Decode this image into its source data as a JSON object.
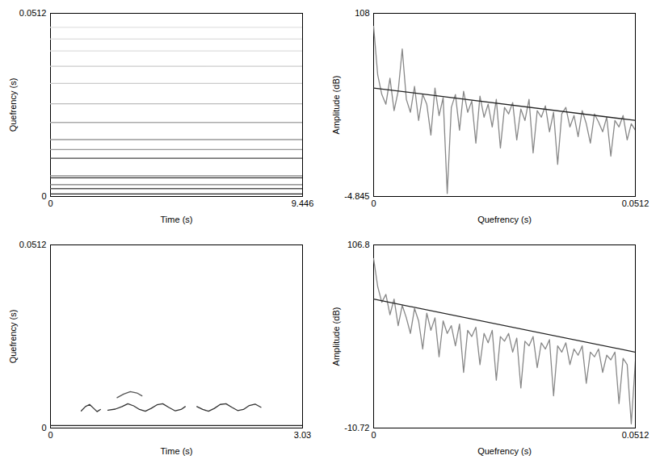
{
  "chart_data": [
    {
      "type": "line",
      "xlabel": "Time (s)",
      "ylabel": "Quefrency (s)",
      "xlim": [
        0,
        9.446
      ],
      "xticks": [
        0,
        9.446
      ],
      "ylim": [
        0,
        0.0512
      ],
      "yticks": [
        0,
        0.0512
      ],
      "series": [
        {
          "x": [
            0,
            9.446
          ],
          "values": [
            0.0007,
            0.0007
          ],
          "color": "#222222"
        },
        {
          "x": [
            0,
            9.446
          ],
          "values": [
            0.0022,
            0.0022
          ],
          "color": "#555555"
        },
        {
          "x": [
            0,
            9.446
          ],
          "values": [
            0.0033,
            0.0033
          ],
          "color": "#777777"
        },
        {
          "x": [
            0,
            9.446
          ],
          "values": [
            0.0052,
            0.0052
          ],
          "color": "#333333"
        },
        {
          "x": [
            0,
            9.446
          ],
          "values": [
            0.0058,
            0.0058
          ],
          "color": "#888888"
        },
        {
          "x": [
            0,
            9.446
          ],
          "values": [
            0.0107,
            0.0107
          ],
          "color": "#444444"
        },
        {
          "x": [
            0,
            9.446
          ],
          "values": [
            0.0131,
            0.0131
          ],
          "color": "#999999"
        },
        {
          "x": [
            0,
            9.446
          ],
          "values": [
            0.0159,
            0.0159
          ],
          "color": "#999999"
        },
        {
          "x": [
            0,
            9.446
          ],
          "values": [
            0.0207,
            0.0207
          ],
          "color": "#aaaaaa"
        },
        {
          "x": [
            0,
            9.446
          ],
          "values": [
            0.0259,
            0.0259
          ],
          "color": "#bbbbbb"
        },
        {
          "x": [
            0,
            9.446
          ],
          "values": [
            0.0316,
            0.0316
          ],
          "color": "#cccccc"
        },
        {
          "x": [
            0,
            9.446
          ],
          "values": [
            0.0364,
            0.0364
          ],
          "color": "#cccccc"
        },
        {
          "x": [
            0,
            9.446
          ],
          "values": [
            0.0407,
            0.0407
          ],
          "color": "#dddddd"
        },
        {
          "x": [
            0,
            9.446
          ],
          "values": [
            0.044,
            0.044
          ],
          "color": "#dddddd"
        },
        {
          "x": [
            0,
            9.446
          ],
          "values": [
            0.0473,
            0.0473
          ],
          "color": "#e2e2e2"
        }
      ]
    },
    {
      "type": "line",
      "xlabel": "Quefrency (s)",
      "ylabel": "Amplitude (dB)",
      "xlim": [
        0,
        0.0512
      ],
      "xticks": [
        0,
        0.0512
      ],
      "ylim": [
        -4.845,
        108
      ],
      "yticks": [
        -4.845,
        108
      ],
      "series": [
        {
          "x": [
            0,
            0.0008,
            0.0016,
            0.0024,
            0.0032,
            0.004,
            0.0048,
            0.0056,
            0.0064,
            0.0072,
            0.008,
            0.0088,
            0.0096,
            0.0104,
            0.0112,
            0.012,
            0.0128,
            0.0136,
            0.0144,
            0.0152,
            0.016,
            0.0168,
            0.0176,
            0.0184,
            0.0192,
            0.02,
            0.0208,
            0.0216,
            0.0224,
            0.0232,
            0.024,
            0.0248,
            0.0256,
            0.0264,
            0.0272,
            0.028,
            0.0288,
            0.0296,
            0.0304,
            0.0312,
            0.032,
            0.0328,
            0.0336,
            0.0344,
            0.0352,
            0.036,
            0.0368,
            0.0376,
            0.0384,
            0.0392,
            0.04,
            0.0408,
            0.0416,
            0.0424,
            0.0432,
            0.044,
            0.0448,
            0.0456,
            0.0464,
            0.0472,
            0.048,
            0.0488,
            0.0496,
            0.0504,
            0.0512
          ],
          "values": [
            100,
            70,
            58,
            52,
            68,
            48,
            60,
            86,
            55,
            47,
            63,
            42,
            58,
            52,
            33,
            62,
            45,
            56,
            -3,
            50,
            58,
            36,
            60,
            47,
            54,
            28,
            57,
            44,
            52,
            38,
            55,
            25,
            50,
            46,
            53,
            30,
            49,
            42,
            55,
            22,
            48,
            44,
            51,
            35,
            47,
            15,
            46,
            50,
            38,
            45,
            32,
            48,
            40,
            28,
            46,
            41,
            35,
            44,
            20,
            42,
            38,
            45,
            30,
            40,
            36
          ],
          "color": "#888888",
          "line_style": "solid"
        },
        {
          "x": [
            0,
            0.0512
          ],
          "values": [
            62,
            42
          ],
          "color": "#222222",
          "line_style": "solid"
        }
      ]
    },
    {
      "type": "line",
      "xlabel": "Time (s)",
      "ylabel": "Quefrency (s)",
      "xlim": [
        0,
        3.03
      ],
      "xticks": [
        0,
        3.03
      ],
      "ylim": [
        0,
        0.0512
      ],
      "yticks": [
        0,
        0.0512
      ],
      "series": [
        {
          "x": [
            0,
            3.03
          ],
          "values": [
            0.0007,
            0.0007
          ],
          "color": "#222222"
        },
        {
          "x": [
            0.37,
            0.42,
            0.47,
            0.52,
            0.56,
            0.6
          ],
          "values": [
            0.0048,
            0.006,
            0.0066,
            0.0055,
            0.0046,
            0.0052
          ],
          "color": "#333333"
        },
        {
          "x": [
            0.69,
            0.78,
            0.86,
            0.93,
            1.0,
            1.07,
            1.14,
            1.21,
            1.28,
            1.35,
            1.42,
            1.5,
            1.57,
            1.62
          ],
          "values": [
            0.005,
            0.0053,
            0.006,
            0.0068,
            0.0062,
            0.0052,
            0.0047,
            0.0055,
            0.0065,
            0.0068,
            0.0058,
            0.0048,
            0.0052,
            0.006
          ],
          "color": "#333333"
        },
        {
          "x": [
            0.8,
            0.88,
            0.96,
            1.04,
            1.1
          ],
          "values": [
            0.0085,
            0.0095,
            0.0102,
            0.0098,
            0.009
          ],
          "color": "#555555"
        },
        {
          "x": [
            1.76,
            1.83,
            1.9,
            1.97,
            2.04,
            2.11,
            2.18,
            2.25,
            2.32,
            2.39,
            2.46,
            2.53
          ],
          "values": [
            0.006,
            0.0052,
            0.0047,
            0.0055,
            0.0066,
            0.0068,
            0.0058,
            0.0049,
            0.0052,
            0.0063,
            0.0067,
            0.0058
          ],
          "color": "#333333"
        }
      ]
    },
    {
      "type": "line",
      "xlabel": "Quefrency (s)",
      "ylabel": "Amplitude (dB)",
      "xlim": [
        0,
        0.0512
      ],
      "xticks": [
        0,
        0.0512
      ],
      "ylim": [
        -10.72,
        106.8
      ],
      "yticks": [
        -10.72,
        106.8
      ],
      "series": [
        {
          "x": [
            0,
            0.0008,
            0.0016,
            0.0024,
            0.0032,
            0.004,
            0.0048,
            0.0056,
            0.0064,
            0.0072,
            0.008,
            0.0088,
            0.0096,
            0.0104,
            0.0112,
            0.012,
            0.0128,
            0.0136,
            0.0144,
            0.0152,
            0.016,
            0.0168,
            0.0176,
            0.0184,
            0.0192,
            0.02,
            0.0208,
            0.0216,
            0.0224,
            0.0232,
            0.024,
            0.0248,
            0.0256,
            0.0264,
            0.0272,
            0.028,
            0.0288,
            0.0296,
            0.0304,
            0.0312,
            0.032,
            0.0328,
            0.0336,
            0.0344,
            0.0352,
            0.036,
            0.0368,
            0.0376,
            0.0384,
            0.0392,
            0.04,
            0.0408,
            0.0416,
            0.0424,
            0.0432,
            0.044,
            0.0448,
            0.0456,
            0.0464,
            0.0472,
            0.048,
            0.0488,
            0.0496,
            0.0504,
            0.0512
          ],
          "values": [
            98,
            80,
            70,
            75,
            62,
            72,
            55,
            68,
            60,
            50,
            66,
            58,
            40,
            63,
            52,
            60,
            35,
            58,
            50,
            55,
            42,
            56,
            25,
            52,
            48,
            54,
            30,
            50,
            44,
            52,
            20,
            48,
            45,
            50,
            38,
            47,
            15,
            45,
            42,
            48,
            28,
            44,
            40,
            46,
            10,
            42,
            38,
            44,
            30,
            40,
            36,
            42,
            18,
            38,
            35,
            40,
            25,
            36,
            33,
            38,
            5,
            34,
            30,
            -8,
            32
          ],
          "color": "#888888",
          "line_style": "solid"
        },
        {
          "x": [
            0,
            0.0512
          ],
          "values": [
            72,
            38
          ],
          "color": "#222222",
          "line_style": "solid"
        }
      ]
    }
  ]
}
